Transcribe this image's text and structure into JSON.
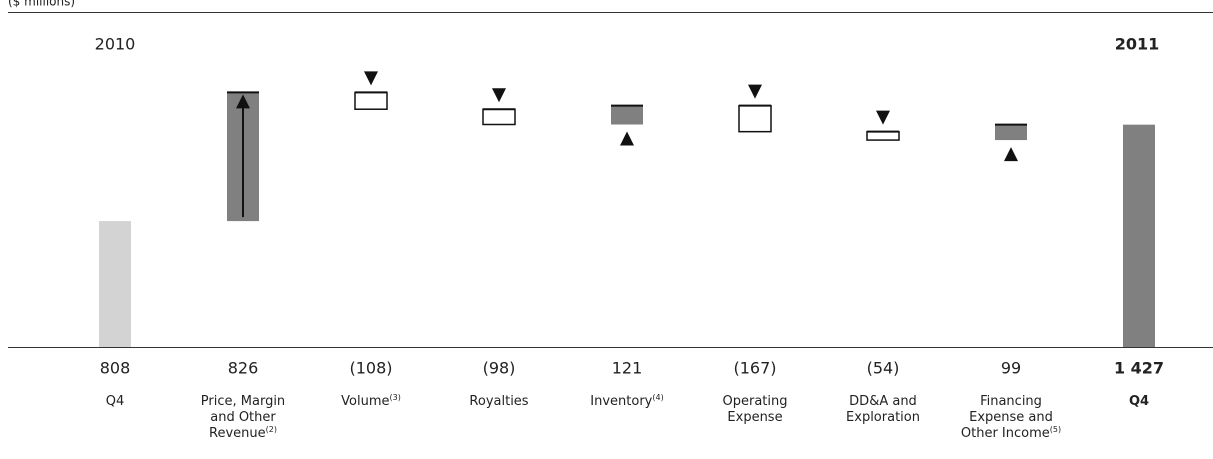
{
  "chart_data": {
    "type": "waterfall",
    "unit_label": "($ millions)",
    "start_period": "2010",
    "end_period": "2011",
    "categories": [
      "Q4",
      "Price, Margin and Other Revenue",
      "Volume",
      "Royalties",
      "Inventory",
      "Operating Expense",
      "DD&A and Exploration",
      "Financing Expense and Other Income",
      "Q4"
    ],
    "footnotes": [
      null,
      "(2)",
      "(3)",
      null,
      "(4)",
      null,
      null,
      "(5)",
      null
    ],
    "values": [
      808,
      826,
      -108,
      -98,
      121,
      -167,
      -54,
      99,
      1427
    ],
    "value_labels": [
      "808",
      "826",
      "(108)",
      "(98)",
      "121",
      "(167)",
      "(54)",
      "99",
      "1 427"
    ],
    "measures": [
      "absolute",
      "relative",
      "relative",
      "relative",
      "relative",
      "relative",
      "relative",
      "relative",
      "total"
    ],
    "colors": {
      "absolute": "#d3d3d3",
      "increase": "#808080",
      "decrease": "#ffffff",
      "total": "#808080"
    },
    "ylim": [
      0,
      2150
    ]
  }
}
